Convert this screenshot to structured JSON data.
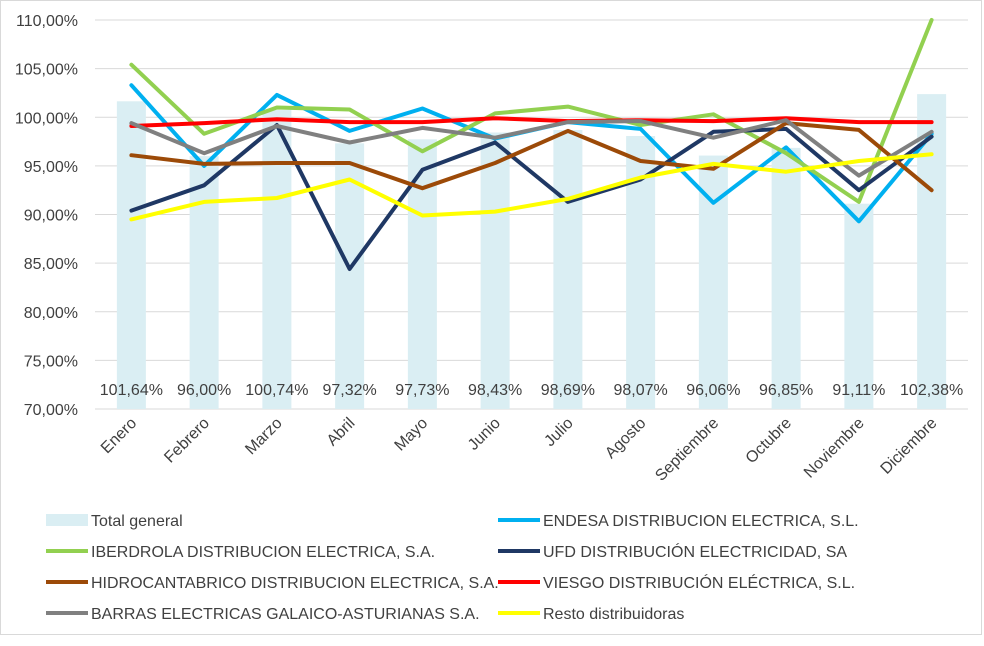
{
  "chart_data": {
    "type": "bar",
    "title": "",
    "xlabel": "",
    "ylabel": "",
    "ylim": [
      70,
      110
    ],
    "yticks": [
      "70,00%",
      "75,00%",
      "80,00%",
      "85,00%",
      "90,00%",
      "95,00%",
      "100,00%",
      "105,00%",
      "110,00%"
    ],
    "grid": true,
    "legend_position": "bottom",
    "categories": [
      "Enero",
      "Febrero",
      "Marzo",
      "Abril",
      "Mayo",
      "Junio",
      "Julio",
      "Agosto",
      "Septiembre",
      "Octubre",
      "Noviembre",
      "Diciembre"
    ],
    "bar_series": {
      "name": "Total general",
      "color": "#daeef3",
      "values": [
        101.64,
        96.0,
        100.74,
        97.32,
        97.73,
        98.43,
        98.69,
        98.07,
        96.06,
        96.85,
        91.11,
        102.38
      ],
      "labels": [
        "101,64%",
        "96,00%",
        "100,74%",
        "97,32%",
        "97,73%",
        "98,43%",
        "98,69%",
        "98,07%",
        "96,06%",
        "96,85%",
        "91,11%",
        "102,38%"
      ]
    },
    "series": [
      {
        "name": "ENDESA DISTRIBUCION ELECTRICA, S.L.",
        "color": "#00b0f0",
        "values": [
          103.3,
          95.0,
          102.3,
          98.6,
          100.9,
          97.8,
          99.5,
          98.8,
          91.2,
          96.9,
          89.3,
          98.3
        ]
      },
      {
        "name": "IBERDROLA DISTRIBUCION ELECTRICA, S.A.",
        "color": "#92d050",
        "values": [
          105.4,
          98.3,
          101.0,
          100.8,
          96.5,
          100.4,
          101.1,
          99.2,
          100.3,
          96.3,
          91.3,
          110.0
        ]
      },
      {
        "name": "UFD DISTRIBUCIÓN ELECTRICIDAD, SA",
        "color": "#1f3864",
        "values": [
          90.4,
          93.0,
          99.2,
          84.4,
          94.6,
          97.4,
          91.3,
          93.6,
          98.5,
          98.8,
          92.5,
          98.0
        ]
      },
      {
        "name": "HIDROCANTABRICO DISTRIBUCION ELECTRICA, S.A.",
        "color": "#9c4a08",
        "values": [
          96.1,
          95.2,
          95.3,
          95.3,
          92.7,
          95.3,
          98.6,
          95.5,
          94.7,
          99.4,
          98.7,
          92.5
        ]
      },
      {
        "name": "VIESGO DISTRIBUCIÓN ELÉCTRICA, S.L.",
        "color": "#ff0000",
        "values": [
          99.1,
          99.4,
          99.8,
          99.5,
          99.5,
          99.9,
          99.6,
          99.7,
          99.6,
          99.9,
          99.5,
          99.5
        ]
      },
      {
        "name": "BARRAS ELECTRICAS GALAICO-ASTURIANAS S.A.",
        "color": "#808080",
        "values": [
          99.4,
          96.3,
          99.1,
          97.4,
          98.9,
          97.9,
          99.5,
          99.6,
          97.9,
          99.7,
          94.0,
          98.5
        ]
      },
      {
        "name": "Resto distribuidoras",
        "color": "#ffff00",
        "values": [
          89.5,
          91.3,
          91.7,
          93.6,
          89.9,
          90.3,
          91.6,
          93.8,
          95.2,
          94.4,
          95.5,
          96.2
        ]
      }
    ],
    "legend_order": [
      "Total general",
      "ENDESA DISTRIBUCION ELECTRICA, S.L.",
      "IBERDROLA DISTRIBUCION ELECTRICA, S.A.",
      "UFD DISTRIBUCIÓN ELECTRICIDAD, SA",
      "HIDROCANTABRICO DISTRIBUCION ELECTRICA, S.A.",
      "VIESGO DISTRIBUCIÓN ELÉCTRICA, S.L.",
      "BARRAS ELECTRICAS GALAICO-ASTURIANAS S.A.",
      "Resto distribuidoras"
    ]
  }
}
